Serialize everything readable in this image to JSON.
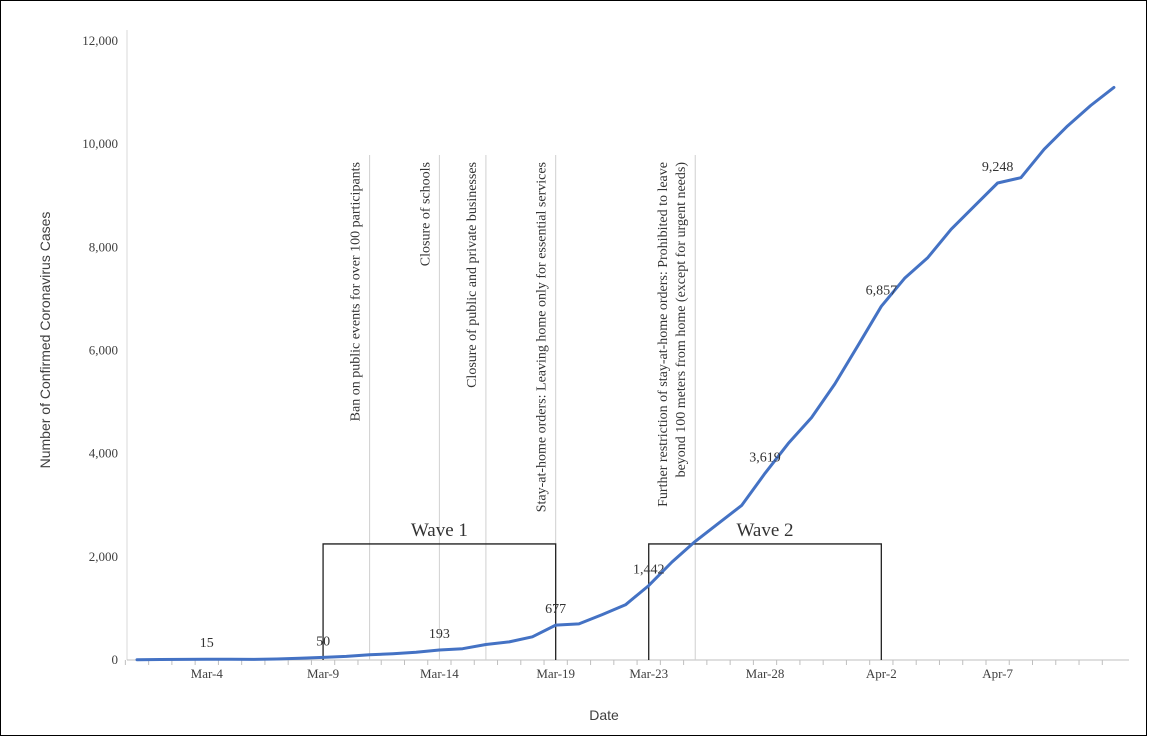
{
  "chart_data": {
    "type": "line",
    "xlabel": "Date",
    "ylabel": "Number of Confirmed Coronavirus Cases",
    "ylim": [
      0,
      12000
    ],
    "yticks": [
      "0",
      "2,000",
      "4,000",
      "6,000",
      "8,000",
      "10,000",
      "12,000"
    ],
    "ytick_values": [
      0,
      2000,
      4000,
      6000,
      8000,
      10000,
      12000
    ],
    "xtick_labels": [
      {
        "label": "Mar-4",
        "day": 4
      },
      {
        "label": "Mar-9",
        "day": 9
      },
      {
        "label": "Mar-14",
        "day": 14
      },
      {
        "label": "Mar-19",
        "day": 19
      },
      {
        "label": "Mar-23",
        "day": 23
      },
      {
        "label": "Mar-28",
        "day": 28
      },
      {
        "label": "Apr-2",
        "day": 33
      },
      {
        "label": "Apr-7",
        "day": 38
      }
    ],
    "x_unit": "day of March",
    "series": [
      {
        "color": "#4472C4",
        "x": [
          1,
          2,
          3,
          4,
          5,
          6,
          7,
          8,
          9,
          10,
          11,
          12,
          13,
          14,
          15,
          16,
          17,
          18,
          19,
          20,
          21,
          22,
          23,
          24,
          25,
          26,
          27,
          28,
          29,
          30,
          31,
          32,
          33,
          34,
          35,
          36,
          37,
          38,
          39,
          40,
          41,
          42,
          43
        ],
        "values": [
          5,
          10,
          12,
          15,
          15,
          12,
          20,
          35,
          50,
          70,
          100,
          120,
          150,
          193,
          220,
          300,
          350,
          450,
          677,
          700,
          880,
          1070,
          1442,
          1900,
          2300,
          2650,
          3000,
          3619,
          4200,
          4700,
          5350,
          6100,
          6857,
          7400,
          7800,
          8350,
          8800,
          9248,
          9350,
          9900,
          10350,
          10750,
          11100
        ]
      }
    ],
    "data_labels": [
      {
        "text": "15",
        "x": 4,
        "y": 15
      },
      {
        "text": "50",
        "x": 9,
        "y": 50
      },
      {
        "text": "193",
        "x": 14,
        "y": 193
      },
      {
        "text": "677",
        "x": 19,
        "y": 677
      },
      {
        "text": "1,442",
        "x": 23,
        "y": 1442
      },
      {
        "text": "3,619",
        "x": 28,
        "y": 3619
      },
      {
        "text": "6,857",
        "x": 33,
        "y": 6857
      },
      {
        "text": "9,248",
        "x": 38,
        "y": 9248
      }
    ],
    "annotations": [
      {
        "day": 11,
        "text": "Ban on public events for over 100 participants"
      },
      {
        "day": 14,
        "text": "Closure of schools"
      },
      {
        "day": 16,
        "text": "Closure of public and private businesses"
      },
      {
        "day": 19,
        "text": "Stay-at-home orders: Leaving home only for essential services"
      },
      {
        "day": 25,
        "text": "Further restriction of stay-at-home orders: Prohibited to leave",
        "text2": "beyond 100 meters from home (except for urgent needs)"
      }
    ],
    "waves": [
      {
        "label": "Wave 1",
        "start": 9,
        "end": 19,
        "y": 2250
      },
      {
        "label": "Wave 2",
        "start": 23,
        "end": 33,
        "y": 2250
      }
    ],
    "grid": false,
    "legend": "none"
  }
}
